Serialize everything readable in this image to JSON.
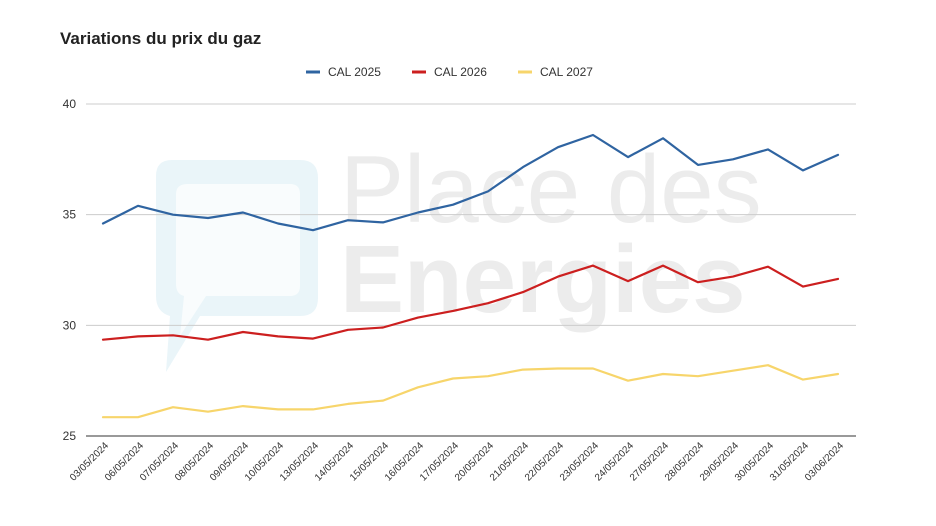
{
  "chart_data": {
    "type": "line",
    "title": "Variations du prix du gaz",
    "xlabel": "",
    "ylabel": "",
    "ylim": [
      25,
      40
    ],
    "yticks": [
      25,
      30,
      35,
      40
    ],
    "grid": true,
    "legend_position": "top",
    "categories": [
      "03/05/2024",
      "06/05/2024",
      "07/05/2024",
      "08/05/2024",
      "09/05/2024",
      "10/05/2024",
      "13/05/2024",
      "14/05/2024",
      "15/05/2024",
      "16/05/2024",
      "17/05/2024",
      "20/05/2024",
      "21/05/2024",
      "22/05/2024",
      "23/05/2024",
      "24/05/2024",
      "27/05/2024",
      "28/05/2024",
      "29/05/2024",
      "30/05/2024",
      "31/05/2024",
      "03/06/2024"
    ],
    "series": [
      {
        "name": "CAL 2025",
        "color": "#2f64a1",
        "values": [
          34.6,
          35.4,
          35.0,
          34.85,
          35.1,
          34.6,
          34.3,
          34.75,
          34.65,
          35.1,
          35.45,
          36.05,
          37.15,
          38.05,
          38.6,
          37.6,
          38.45,
          37.25,
          37.5,
          37.95,
          37.0,
          37.7
        ]
      },
      {
        "name": "CAL 2026",
        "color": "#cc1f1f",
        "values": [
          29.35,
          29.5,
          29.55,
          29.35,
          29.7,
          29.5,
          29.4,
          29.8,
          29.9,
          30.35,
          30.65,
          31.0,
          31.5,
          32.2,
          32.7,
          32.0,
          32.7,
          31.95,
          32.2,
          32.65,
          31.75,
          32.1
        ]
      },
      {
        "name": "CAL 2027",
        "color": "#f7d56b",
        "values": [
          25.85,
          25.85,
          26.3,
          26.1,
          26.35,
          26.2,
          26.2,
          26.45,
          26.6,
          27.2,
          27.6,
          27.7,
          28.0,
          28.05,
          28.05,
          27.5,
          27.8,
          27.7,
          27.95,
          28.2,
          27.55,
          27.8
        ]
      }
    ]
  },
  "watermark": {
    "line1": "Place des",
    "line2": "Energies",
    "color": "#ececec",
    "icon": "speech-bubble-icon"
  }
}
